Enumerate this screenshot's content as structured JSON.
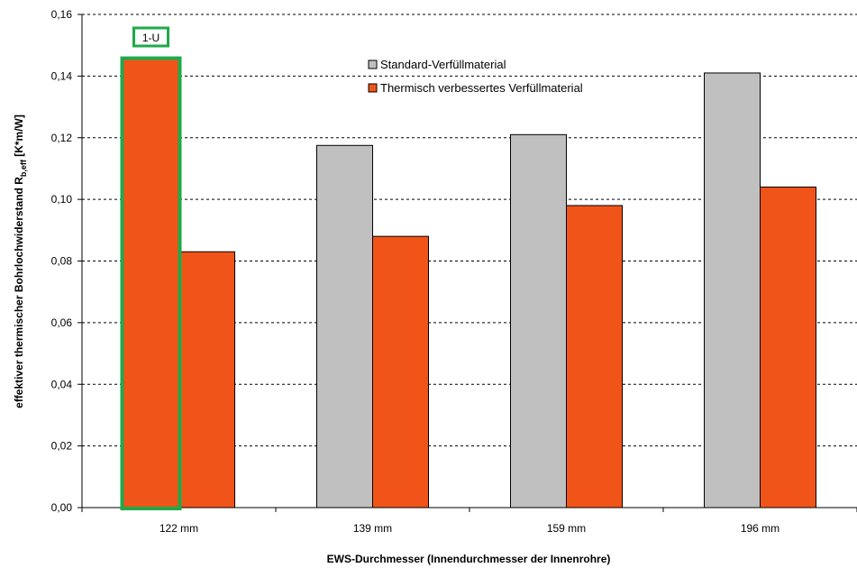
{
  "chart_data": {
    "type": "bar",
    "categories": [
      "122 mm",
      "139 mm",
      "159 mm",
      "196 mm"
    ],
    "series": [
      {
        "name": "Standard-Verfüllmaterial",
        "color": "#c0c0c0",
        "values": [
          0.1455,
          0.1175,
          0.121,
          0.141
        ]
      },
      {
        "name": "Thermisch verbessertes Verfüllmaterial",
        "color": "#f15418",
        "values": [
          0.083,
          0.088,
          0.098,
          0.104
        ]
      }
    ],
    "ylim": [
      0,
      0.16
    ],
    "yticks": [
      "0,00",
      "0,02",
      "0,04",
      "0,06",
      "0,08",
      "0,10",
      "0,12",
      "0,14",
      "0,16"
    ],
    "xlabel": "EWS-Durchmesser (Innendurchmesser der Innenrohre)",
    "ylabel_main": "effektiver thermischer Bohrlochwiderstand R",
    "ylabel_sub": "b,eff",
    "ylabel_unit": " [K*m/W]",
    "grid": "horizontal dashed",
    "legend_position": "top-center",
    "annotation": {
      "label": "1-U",
      "category_index": 0,
      "color": "#1faa4a",
      "note_fill": "#f15418"
    }
  }
}
